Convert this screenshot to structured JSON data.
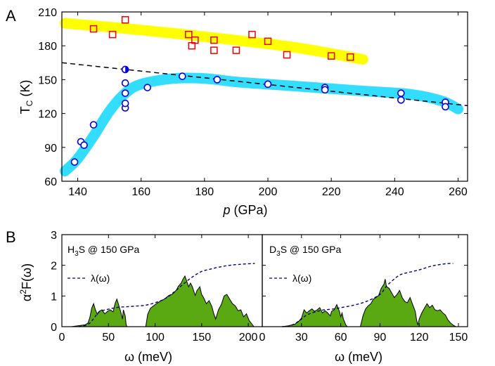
{
  "panel_a": {
    "letter": "A",
    "xlabel_italic": "p",
    "xlabel_rest": " (GPa)",
    "ylabel_main": "T",
    "ylabel_sub": "C",
    "ylabel_rest": " (K)"
  },
  "panel_b": {
    "letter": "B",
    "ylabel_main": "α",
    "ylabel_sup": "2",
    "ylabel_rest": "F(ω)",
    "left_title_pre": "H",
    "left_title_sub": "3",
    "left_title_post": "S @ 150 GPa",
    "right_title_pre": "D",
    "right_title_sub": "3",
    "right_title_post": "S @ 150 GPa",
    "legend_label": "λ(ω)",
    "left_xlabel": "ω (meV)",
    "right_xlabel": "ω (meV)"
  },
  "colors": {
    "yellow_band": "#ffff00",
    "cyan_band": "#33ddff",
    "red_squares": "#ee0000",
    "blue_circles": "#0000dd",
    "spectrum_fill": "#5aa812",
    "lambda_line": "#000080"
  },
  "chart_data": [
    {
      "type": "scatter",
      "panel": "A",
      "xlim": [
        135,
        263
      ],
      "ylim": [
        60,
        210
      ],
      "x_ticks": [
        140,
        160,
        180,
        200,
        220,
        240,
        260
      ],
      "y_ticks": [
        60,
        90,
        120,
        150,
        180,
        210
      ],
      "series": [
        {
          "marker": "square",
          "points": [
            [
              145,
              195
            ],
            [
              151,
              190
            ],
            [
              155,
              203
            ],
            [
              175,
              190
            ],
            [
              176,
              180
            ],
            [
              177,
              185
            ],
            [
              183,
              185
            ],
            [
              183,
              176
            ],
            [
              190,
              176
            ],
            [
              195,
              190
            ],
            [
              200,
              184
            ],
            [
              206,
              172
            ],
            [
              220,
              171
            ],
            [
              226,
              170
            ]
          ]
        },
        {
          "marker": "circle",
          "points": [
            [
              139,
              77
            ],
            [
              141,
              95
            ],
            [
              142,
              92
            ],
            [
              145,
              110
            ],
            [
              155,
              125
            ],
            [
              155,
              129
            ],
            [
              155,
              138
            ],
            [
              155,
              147
            ],
            [
              155,
              159
            ],
            [
              162,
              143
            ],
            [
              173,
              153
            ],
            [
              184,
              150
            ],
            [
              200,
              146
            ],
            [
              218,
              143
            ],
            [
              218,
              141
            ],
            [
              242,
              138
            ],
            [
              242,
              132
            ],
            [
              256,
              130
            ],
            [
              256,
              126
            ]
          ]
        }
      ],
      "bands": [
        {
          "color": "yellow",
          "points": [
            [
              136,
              200
            ],
            [
              160,
              194
            ],
            [
              190,
              185
            ],
            [
              210,
              178
            ],
            [
              230,
              168
            ]
          ]
        },
        {
          "color": "cyan",
          "points": [
            [
              136,
              69
            ],
            [
              140,
              80
            ],
            [
              145,
              100
            ],
            [
              150,
              122
            ],
            [
              155,
              138
            ],
            [
              160,
              146
            ],
            [
              170,
              151
            ],
            [
              180,
              151
            ],
            [
              190,
              148
            ],
            [
              200,
              146
            ],
            [
              215,
              143
            ],
            [
              230,
              140
            ],
            [
              245,
              137
            ],
            [
              255,
              131
            ],
            [
              260,
              124
            ]
          ]
        }
      ],
      "fit_line": {
        "style": "dashed",
        "points": [
          [
            135,
            165
          ],
          [
            263,
            127
          ]
        ]
      }
    },
    {
      "type": "area",
      "panel": "B-left",
      "xlim": [
        0,
        215
      ],
      "ylim": [
        0,
        3
      ],
      "x_ticks": [
        0,
        50,
        100,
        150,
        200
      ],
      "y_ticks": [
        0,
        1,
        2,
        3
      ],
      "spectrum": [
        [
          10,
          0
        ],
        [
          15,
          0.02
        ],
        [
          20,
          0.04
        ],
        [
          25,
          0.06
        ],
        [
          28,
          0.12
        ],
        [
          30,
          0.3
        ],
        [
          32,
          0.6
        ],
        [
          34,
          0.75
        ],
        [
          36,
          0.55
        ],
        [
          38,
          0.4
        ],
        [
          40,
          0.5
        ],
        [
          43,
          0.55
        ],
        [
          46,
          0.42
        ],
        [
          49,
          0.5
        ],
        [
          52,
          0.55
        ],
        [
          55,
          0.48
        ],
        [
          57,
          0.75
        ],
        [
          59,
          0.9
        ],
        [
          61,
          0.7
        ],
        [
          63,
          0.5
        ],
        [
          65,
          0.25
        ],
        [
          66,
          0.55
        ],
        [
          68,
          0.35
        ],
        [
          69,
          0.05
        ],
        [
          70,
          0
        ],
        [
          90,
          0
        ],
        [
          92,
          0.4
        ],
        [
          95,
          0.6
        ],
        [
          100,
          0.72
        ],
        [
          105,
          0.82
        ],
        [
          110,
          0.9
        ],
        [
          115,
          1.02
        ],
        [
          118,
          1.05
        ],
        [
          120,
          1.1
        ],
        [
          123,
          1.2
        ],
        [
          125,
          1.32
        ],
        [
          128,
          1.42
        ],
        [
          130,
          1.55
        ],
        [
          132,
          1.65
        ],
        [
          134,
          1.48
        ],
        [
          136,
          1.3
        ],
        [
          138,
          1.42
        ],
        [
          140,
          1.3
        ],
        [
          143,
          1.02
        ],
        [
          145,
          1.18
        ],
        [
          148,
          1.3
        ],
        [
          150,
          1.05
        ],
        [
          152,
          0.95
        ],
        [
          155,
          0.75
        ],
        [
          158,
          0.85
        ],
        [
          161,
          0.65
        ],
        [
          163,
          0.42
        ],
        [
          165,
          0.25
        ],
        [
          168,
          0.55
        ],
        [
          171,
          0.72
        ],
        [
          174,
          1.0
        ],
        [
          177,
          1.05
        ],
        [
          180,
          0.9
        ],
        [
          183,
          0.75
        ],
        [
          186,
          0.68
        ],
        [
          189,
          0.52
        ],
        [
          192,
          0.55
        ],
        [
          195,
          0.32
        ],
        [
          198,
          0.42
        ],
        [
          201,
          0.2
        ],
        [
          204,
          0.08
        ],
        [
          206,
          0
        ]
      ],
      "lambda": [
        [
          18,
          0
        ],
        [
          25,
          0.04
        ],
        [
          30,
          0.12
        ],
        [
          35,
          0.3
        ],
        [
          40,
          0.48
        ],
        [
          50,
          0.57
        ],
        [
          60,
          0.63
        ],
        [
          70,
          0.65
        ],
        [
          80,
          0.67
        ],
        [
          90,
          0.7
        ],
        [
          100,
          0.78
        ],
        [
          110,
          0.9
        ],
        [
          120,
          1.12
        ],
        [
          130,
          1.38
        ],
        [
          140,
          1.62
        ],
        [
          150,
          1.8
        ],
        [
          160,
          1.88
        ],
        [
          170,
          1.95
        ],
        [
          180,
          2.0
        ],
        [
          190,
          2.03
        ],
        [
          200,
          2.05
        ],
        [
          207,
          2.06
        ]
      ]
    },
    {
      "type": "area",
      "panel": "B-right",
      "xlim": [
        0,
        157
      ],
      "ylim": [
        0,
        3
      ],
      "x_ticks": [
        0,
        30,
        60,
        90,
        120,
        150
      ],
      "y_ticks": [
        0,
        1,
        2,
        3
      ],
      "spectrum": [
        [
          15,
          0
        ],
        [
          20,
          0.03
        ],
        [
          25,
          0.08
        ],
        [
          28,
          0.18
        ],
        [
          30,
          0.28
        ],
        [
          32,
          0.55
        ],
        [
          34,
          0.45
        ],
        [
          36,
          0.52
        ],
        [
          38,
          0.58
        ],
        [
          40,
          0.5
        ],
        [
          42,
          0.55
        ],
        [
          44,
          0.62
        ],
        [
          46,
          0.45
        ],
        [
          48,
          0.52
        ],
        [
          50,
          0.45
        ],
        [
          52,
          0.35
        ],
        [
          53,
          0.5
        ],
        [
          55,
          0.55
        ],
        [
          57,
          0.72
        ],
        [
          59,
          0.5
        ],
        [
          60,
          0.32
        ],
        [
          61,
          0.45
        ],
        [
          62,
          0.25
        ],
        [
          64,
          0.05
        ],
        [
          65,
          0
        ],
        [
          75,
          0
        ],
        [
          77,
          0.35
        ],
        [
          79,
          0.58
        ],
        [
          81,
          0.68
        ],
        [
          83,
          0.75
        ],
        [
          85,
          0.9
        ],
        [
          87,
          0.95
        ],
        [
          89,
          1.02
        ],
        [
          91,
          1.25
        ],
        [
          93,
          1.38
        ],
        [
          94,
          1.55
        ],
        [
          95,
          1.3
        ],
        [
          97,
          1.25
        ],
        [
          99,
          1.1
        ],
        [
          101,
          0.95
        ],
        [
          103,
          1.05
        ],
        [
          105,
          1.18
        ],
        [
          107,
          0.95
        ],
        [
          109,
          0.82
        ],
        [
          111,
          0.78
        ],
        [
          113,
          0.95
        ],
        [
          115,
          0.72
        ],
        [
          117,
          0.5
        ],
        [
          118,
          0.22
        ],
        [
          119,
          0.05
        ],
        [
          120,
          0.25
        ],
        [
          122,
          0.45
        ],
        [
          124,
          0.6
        ],
        [
          126,
          0.75
        ],
        [
          128,
          0.62
        ],
        [
          130,
          0.7
        ],
        [
          132,
          0.55
        ],
        [
          134,
          0.52
        ],
        [
          136,
          0.55
        ],
        [
          138,
          0.45
        ],
        [
          140,
          0.38
        ],
        [
          142,
          0.22
        ],
        [
          144,
          0.12
        ],
        [
          146,
          0.05
        ],
        [
          148,
          0
        ]
      ],
      "lambda": [
        [
          15,
          0
        ],
        [
          20,
          0.02
        ],
        [
          25,
          0.1
        ],
        [
          30,
          0.25
        ],
        [
          35,
          0.4
        ],
        [
          45,
          0.53
        ],
        [
          55,
          0.58
        ],
        [
          60,
          0.62
        ],
        [
          70,
          0.7
        ],
        [
          80,
          0.83
        ],
        [
          90,
          1.05
        ],
        [
          95,
          1.32
        ],
        [
          100,
          1.52
        ],
        [
          105,
          1.68
        ],
        [
          110,
          1.75
        ],
        [
          120,
          1.85
        ],
        [
          130,
          1.98
        ],
        [
          140,
          2.05
        ],
        [
          146,
          2.06
        ]
      ]
    }
  ]
}
